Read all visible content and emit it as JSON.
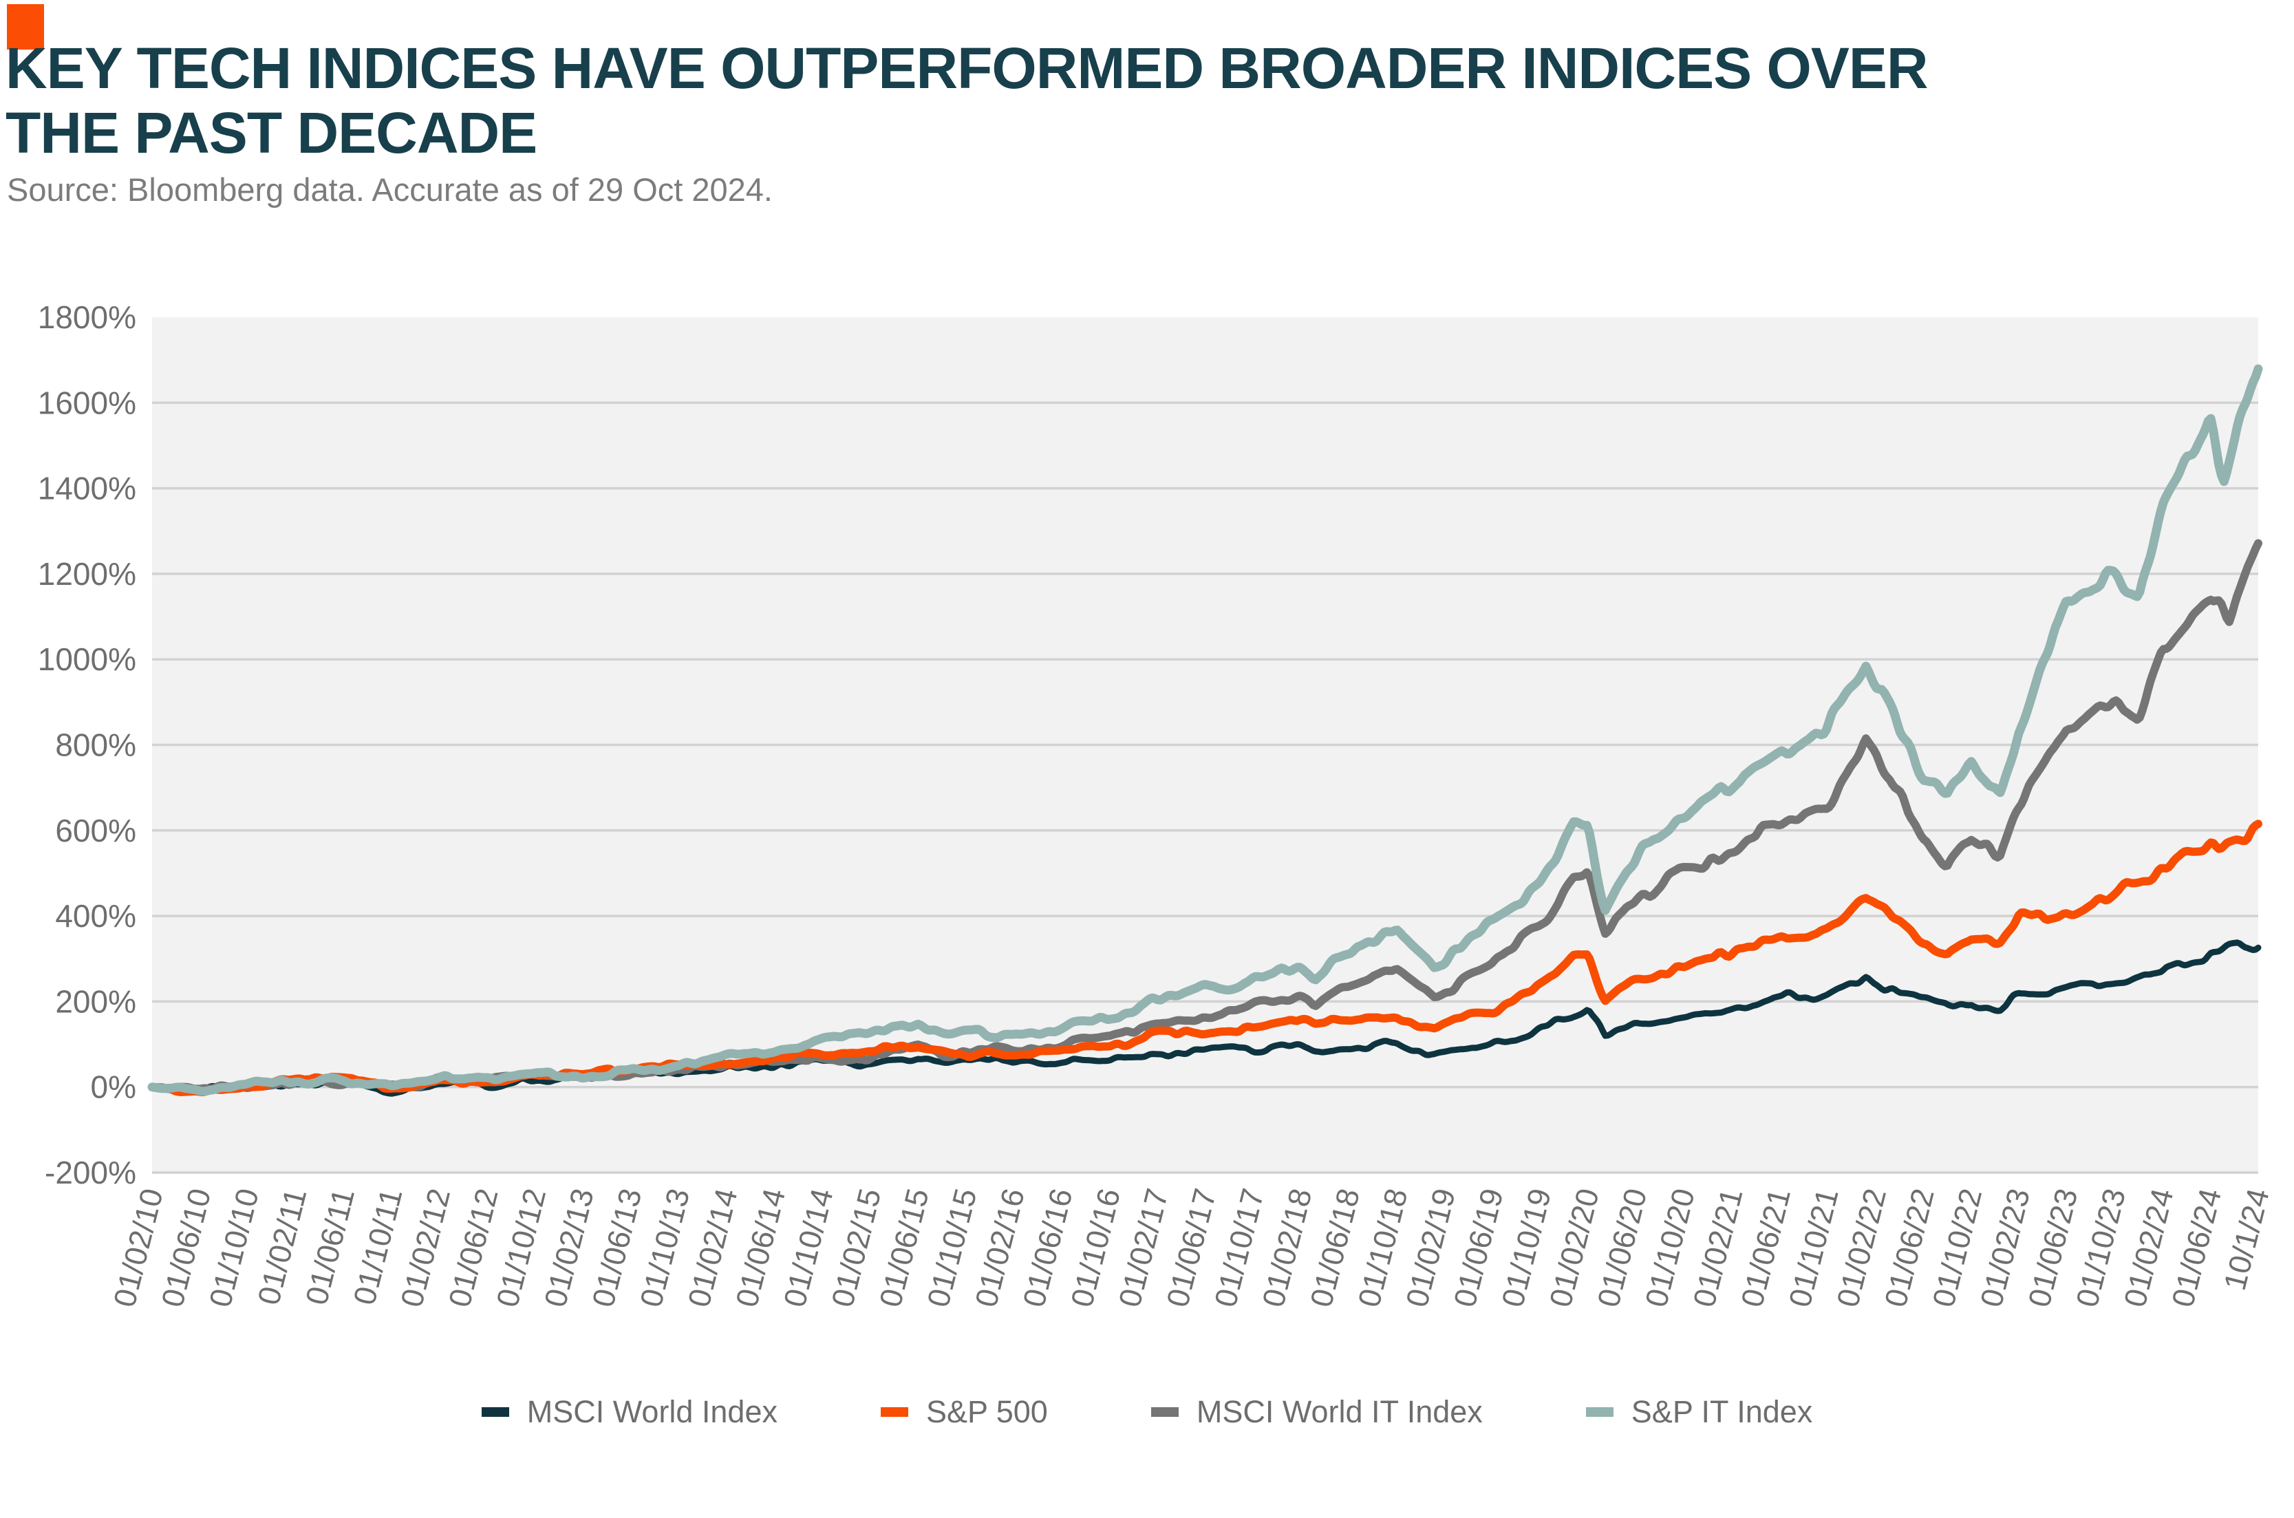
{
  "header": {
    "title_line1": "KEY TECH INDICES HAVE OUTPERFORMED BROADER INDICES OVER",
    "title_line2": "THE PAST DECADE",
    "source": "Source: Bloomberg data. Accurate as of 29 Oct 2024."
  },
  "colors": {
    "brand_orange": "#fb4e04",
    "title_teal": "#18404c",
    "axis_text_gray": "#6e6e6e",
    "source_gray": "#7c7c7c",
    "plot_background": "#f2f2f2",
    "gridline": "#d2d2d2",
    "legend_text": "#6d6d6d"
  },
  "chart_data": {
    "type": "line",
    "title": "Key tech indices vs broader indices, cumulative return since 01/02/10",
    "xlabel": "",
    "ylabel": "",
    "y_unit": "%",
    "ylim": [
      -200,
      1800
    ],
    "ytick_step": 200,
    "grid": "horizontal",
    "legend_position": "bottom",
    "x_tick_labels": [
      "01/02/10",
      "01/06/10",
      "01/10/10",
      "01/02/11",
      "01/06/11",
      "01/10/11",
      "01/02/12",
      "01/06/12",
      "01/10/12",
      "01/02/13",
      "01/06/13",
      "01/10/13",
      "01/02/14",
      "01/06/14",
      "01/10/14",
      "01/02/15",
      "01/06/15",
      "01/10/15",
      "01/02/16",
      "01/06/16",
      "01/10/16",
      "01/02/17",
      "01/06/17",
      "01/10/17",
      "01/02/18",
      "01/06/18",
      "01/10/18",
      "01/02/19",
      "01/06/19",
      "01/10/19",
      "01/02/20",
      "01/06/20",
      "01/10/20",
      "01/02/21",
      "01/06/21",
      "01/10/21",
      "01/02/22",
      "01/06/22",
      "01/10/22",
      "01/02/23",
      "01/06/23",
      "01/10/23",
      "01/02/24",
      "01/06/24",
      "10/1/24"
    ],
    "series": [
      {
        "name": "MSCI World Index",
        "color": "#0e3440",
        "stroke_width": 9,
        "points": [
          [
            0,
            0
          ],
          [
            0.5,
            -5
          ],
          [
            1,
            -7
          ],
          [
            1.5,
            -3
          ],
          [
            2,
            -1
          ],
          [
            2.5,
            4
          ],
          [
            3,
            6
          ],
          [
            3.7,
            9
          ],
          [
            4.4,
            7
          ],
          [
            5,
            -9
          ],
          [
            5.6,
            -5
          ],
          [
            6,
            3
          ],
          [
            7,
            5
          ],
          [
            7.5,
            9
          ],
          [
            8,
            14
          ],
          [
            9,
            20
          ],
          [
            10,
            28
          ],
          [
            11,
            33
          ],
          [
            12,
            43
          ],
          [
            13,
            50
          ],
          [
            14,
            55
          ],
          [
            15,
            60
          ],
          [
            16,
            73
          ],
          [
            16.7,
            55
          ],
          [
            17.3,
            62
          ],
          [
            18,
            54
          ],
          [
            19,
            63
          ],
          [
            20,
            68
          ],
          [
            21,
            78
          ],
          [
            22,
            85
          ],
          [
            23,
            92
          ],
          [
            24,
            98
          ],
          [
            24.3,
            88
          ],
          [
            25,
            94
          ],
          [
            26,
            100
          ],
          [
            26.8,
            75
          ],
          [
            27.3,
            88
          ],
          [
            28,
            102
          ],
          [
            29,
            128
          ],
          [
            29.7,
            175
          ],
          [
            30,
            185
          ],
          [
            30.35,
            115
          ],
          [
            31,
            140
          ],
          [
            32,
            158
          ],
          [
            33,
            186
          ],
          [
            34,
            208
          ],
          [
            35,
            218
          ],
          [
            35.8,
            250
          ],
          [
            36.3,
            230
          ],
          [
            37,
            200
          ],
          [
            37.5,
            190
          ],
          [
            38,
            200
          ],
          [
            38.6,
            185
          ],
          [
            39,
            215
          ],
          [
            40,
            228
          ],
          [
            41,
            240
          ],
          [
            41.5,
            255
          ],
          [
            42,
            268
          ],
          [
            43,
            305
          ],
          [
            43.5,
            318
          ],
          [
            44,
            340
          ]
        ]
      },
      {
        "name": "MSCI World IT Index",
        "color": "#757575",
        "stroke_width": 12,
        "points": [
          [
            0,
            0
          ],
          [
            0.5,
            -5
          ],
          [
            1,
            -8
          ],
          [
            1.5,
            -3
          ],
          [
            2,
            2
          ],
          [
            2.5,
            7
          ],
          [
            3,
            10
          ],
          [
            3.7,
            13
          ],
          [
            4.4,
            10
          ],
          [
            5,
            0
          ],
          [
            5.6,
            4
          ],
          [
            6,
            14
          ],
          [
            7,
            16
          ],
          [
            7.5,
            19
          ],
          [
            8,
            23
          ],
          [
            9,
            24
          ],
          [
            10,
            32
          ],
          [
            11,
            38
          ],
          [
            12,
            48
          ],
          [
            13,
            60
          ],
          [
            14,
            66
          ],
          [
            15,
            72
          ],
          [
            16,
            95
          ],
          [
            16.7,
            78
          ],
          [
            17.3,
            85
          ],
          [
            18,
            88
          ],
          [
            19,
            95
          ],
          [
            20,
            118
          ],
          [
            21,
            155
          ],
          [
            22,
            172
          ],
          [
            23,
            190
          ],
          [
            24,
            218
          ],
          [
            24.3,
            200
          ],
          [
            25,
            230
          ],
          [
            26,
            275
          ],
          [
            26.8,
            212
          ],
          [
            27.3,
            240
          ],
          [
            28,
            285
          ],
          [
            29,
            390
          ],
          [
            29.7,
            485
          ],
          [
            30,
            495
          ],
          [
            30.35,
            357
          ],
          [
            31,
            440
          ],
          [
            32,
            515
          ],
          [
            33,
            560
          ],
          [
            34,
            605
          ],
          [
            35,
            655
          ],
          [
            35.8,
            820
          ],
          [
            36.3,
            740
          ],
          [
            37,
            580
          ],
          [
            37.5,
            535
          ],
          [
            38,
            590
          ],
          [
            38.6,
            545
          ],
          [
            39,
            640
          ],
          [
            40,
            840
          ],
          [
            41,
            880
          ],
          [
            41.5,
            850
          ],
          [
            42,
            1010
          ],
          [
            43,
            1140
          ],
          [
            43.4,
            1095
          ],
          [
            44,
            1250
          ]
        ]
      },
      {
        "name": "S&P 500",
        "color": "#f94d02",
        "stroke_width": 12,
        "points": [
          [
            0,
            0
          ],
          [
            0.5,
            -6
          ],
          [
            1,
            -9
          ],
          [
            1.5,
            -4
          ],
          [
            2,
            1
          ],
          [
            2.5,
            8
          ],
          [
            3,
            12
          ],
          [
            3.7,
            15
          ],
          [
            4.4,
            12
          ],
          [
            5,
            -2
          ],
          [
            5.6,
            2
          ],
          [
            6,
            13
          ],
          [
            7,
            16
          ],
          [
            7.5,
            22
          ],
          [
            8,
            28
          ],
          [
            9,
            33
          ],
          [
            10,
            45
          ],
          [
            11,
            52
          ],
          [
            12,
            60
          ],
          [
            13,
            70
          ],
          [
            14,
            76
          ],
          [
            15,
            82
          ],
          [
            16,
            90
          ],
          [
            16.7,
            75
          ],
          [
            17.3,
            82
          ],
          [
            18,
            76
          ],
          [
            19,
            86
          ],
          [
            20,
            98
          ],
          [
            21,
            120
          ],
          [
            22,
            132
          ],
          [
            23,
            142
          ],
          [
            24,
            158
          ],
          [
            24.3,
            145
          ],
          [
            25,
            152
          ],
          [
            26,
            168
          ],
          [
            26.8,
            138
          ],
          [
            27.3,
            160
          ],
          [
            28,
            185
          ],
          [
            29,
            240
          ],
          [
            29.7,
            300
          ],
          [
            30,
            310
          ],
          [
            30.35,
            207
          ],
          [
            31,
            250
          ],
          [
            32,
            278
          ],
          [
            33,
            318
          ],
          [
            34,
            350
          ],
          [
            35,
            380
          ],
          [
            35.8,
            430
          ],
          [
            36.3,
            400
          ],
          [
            37,
            330
          ],
          [
            37.5,
            315
          ],
          [
            38,
            350
          ],
          [
            38.6,
            345
          ],
          [
            39,
            390
          ],
          [
            40,
            420
          ],
          [
            41,
            445
          ],
          [
            41.5,
            470
          ],
          [
            42,
            505
          ],
          [
            43,
            560
          ],
          [
            43.6,
            578
          ],
          [
            44,
            620
          ]
        ]
      },
      {
        "name": "S&P IT Index",
        "color": "#92b3b0",
        "stroke_width": 13,
        "points": [
          [
            0,
            0
          ],
          [
            0.5,
            -5
          ],
          [
            1,
            -8
          ],
          [
            1.5,
            -2
          ],
          [
            2,
            3
          ],
          [
            2.5,
            9
          ],
          [
            3,
            12
          ],
          [
            3.7,
            15
          ],
          [
            4.4,
            12
          ],
          [
            5,
            2
          ],
          [
            5.6,
            6
          ],
          [
            6,
            16
          ],
          [
            7,
            19
          ],
          [
            7.5,
            23
          ],
          [
            8,
            27
          ],
          [
            9,
            26
          ],
          [
            10,
            35
          ],
          [
            11,
            44
          ],
          [
            12,
            70
          ],
          [
            13,
            85
          ],
          [
            14,
            110
          ],
          [
            15,
            125
          ],
          [
            16,
            143
          ],
          [
            16.7,
            120
          ],
          [
            17.3,
            130
          ],
          [
            18,
            125
          ],
          [
            19,
            140
          ],
          [
            20,
            168
          ],
          [
            21,
            198
          ],
          [
            22,
            225
          ],
          [
            23,
            255
          ],
          [
            24,
            285
          ],
          [
            24.3,
            262
          ],
          [
            25,
            315
          ],
          [
            26,
            372
          ],
          [
            26.8,
            285
          ],
          [
            27.3,
            330
          ],
          [
            28,
            395
          ],
          [
            29,
            480
          ],
          [
            29.7,
            600
          ],
          [
            30,
            610
          ],
          [
            30.35,
            424
          ],
          [
            31,
            545
          ],
          [
            32,
            645
          ],
          [
            33,
            705
          ],
          [
            34,
            765
          ],
          [
            35,
            830
          ],
          [
            35.8,
            1010
          ],
          [
            36.3,
            905
          ],
          [
            37,
            720
          ],
          [
            37.5,
            685
          ],
          [
            38,
            760
          ],
          [
            38.6,
            700
          ],
          [
            39,
            860
          ],
          [
            40,
            1100
          ],
          [
            41,
            1195
          ],
          [
            41.5,
            1150
          ],
          [
            42,
            1360
          ],
          [
            43,
            1530
          ],
          [
            43.3,
            1430
          ],
          [
            43.7,
            1625
          ],
          [
            44,
            1670
          ]
        ]
      }
    ],
    "legend_order": [
      "MSCI World Index",
      "S&P 500",
      "MSCI World IT Index",
      "S&P IT Index"
    ]
  }
}
